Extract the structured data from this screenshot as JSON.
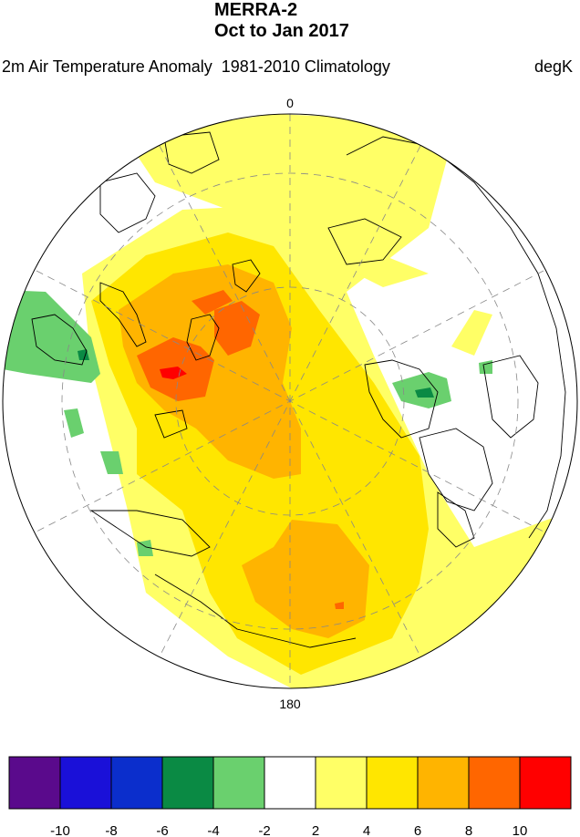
{
  "title": {
    "line1": "MERRA-2",
    "line2": "Oct to Jan 2017"
  },
  "subtitle": {
    "left": "2m Air Temperature Anomaly  1981-2010 Climatology",
    "right": "degK"
  },
  "map": {
    "projection": "north-polar-stereographic",
    "meridian_labels": [
      "0",
      "180"
    ],
    "graticule": "dashed"
  },
  "colorbar": {
    "colors": [
      "#5a0a8c",
      "#1a10d8",
      "#0b2ecc",
      "#0a8a44",
      "#6ad06e",
      "#ffffff",
      "#ffff66",
      "#ffe600",
      "#ffb400",
      "#ff6600",
      "#ff0000"
    ],
    "tick_labels": [
      "-10",
      "-8",
      "-6",
      "-4",
      "-2",
      "2",
      "4",
      "6",
      "8",
      "10"
    ]
  }
}
